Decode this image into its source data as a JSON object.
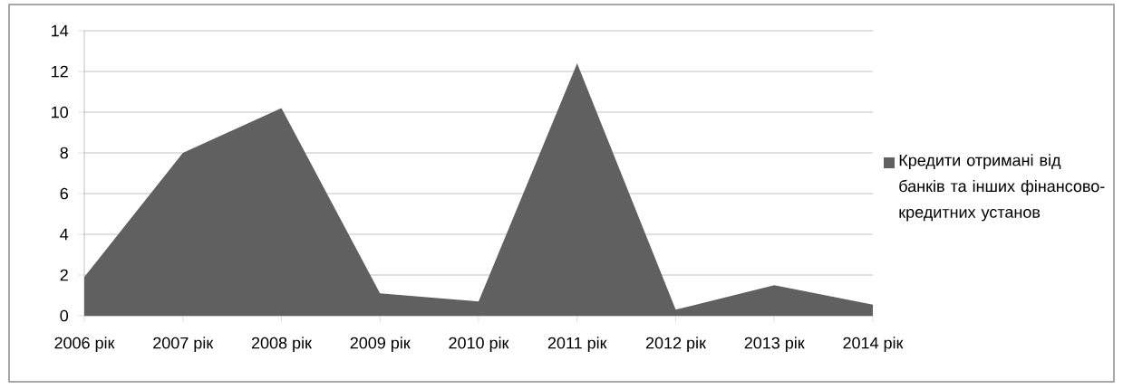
{
  "chart_data": {
    "type": "area",
    "categories": [
      "2006 рік",
      "2007 рік",
      "2008 рік",
      "2009 рік",
      "2010 рік",
      "2011 рік",
      "2012 рік",
      "2013 рік",
      "2014 рік"
    ],
    "series": [
      {
        "name": "Кредити отримані від банків та інших фінансово-кредитних установ",
        "color": "#606060",
        "values": [
          1.9,
          8.0,
          10.2,
          1.1,
          0.7,
          12.4,
          0.3,
          1.5,
          0.55
        ]
      }
    ],
    "ylim": [
      0,
      14
    ],
    "yticks": [
      0,
      2,
      4,
      6,
      8,
      10,
      12,
      14
    ],
    "grid": "y",
    "legend": "right"
  }
}
